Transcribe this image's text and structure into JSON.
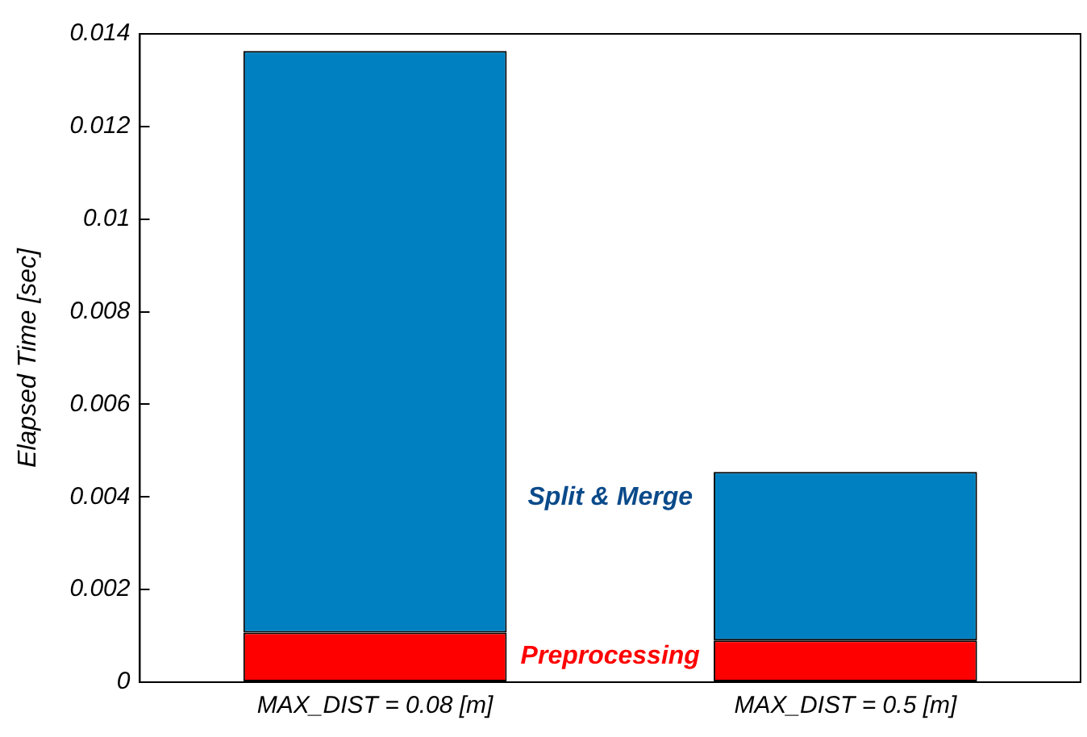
{
  "chart_data": {
    "type": "bar",
    "stacked": true,
    "ylabel": "Elapsed Time [sec]",
    "categories": [
      "MAX_DIST = 0.08 [m]",
      "MAX_DIST = 0.5 [m]"
    ],
    "series": [
      {
        "name": "Preprocessing",
        "color": "#ff0000",
        "values": [
          0.00107,
          0.0009
        ]
      },
      {
        "name": "Split & Merge",
        "color": "#0080c0",
        "values": [
          0.01256,
          0.00364
        ]
      }
    ],
    "ylim": [
      0,
      0.014
    ],
    "yticks": [
      0,
      0.002,
      0.004,
      0.006,
      0.008,
      0.01,
      0.012,
      0.014
    ],
    "grid": false,
    "legend": false
  }
}
